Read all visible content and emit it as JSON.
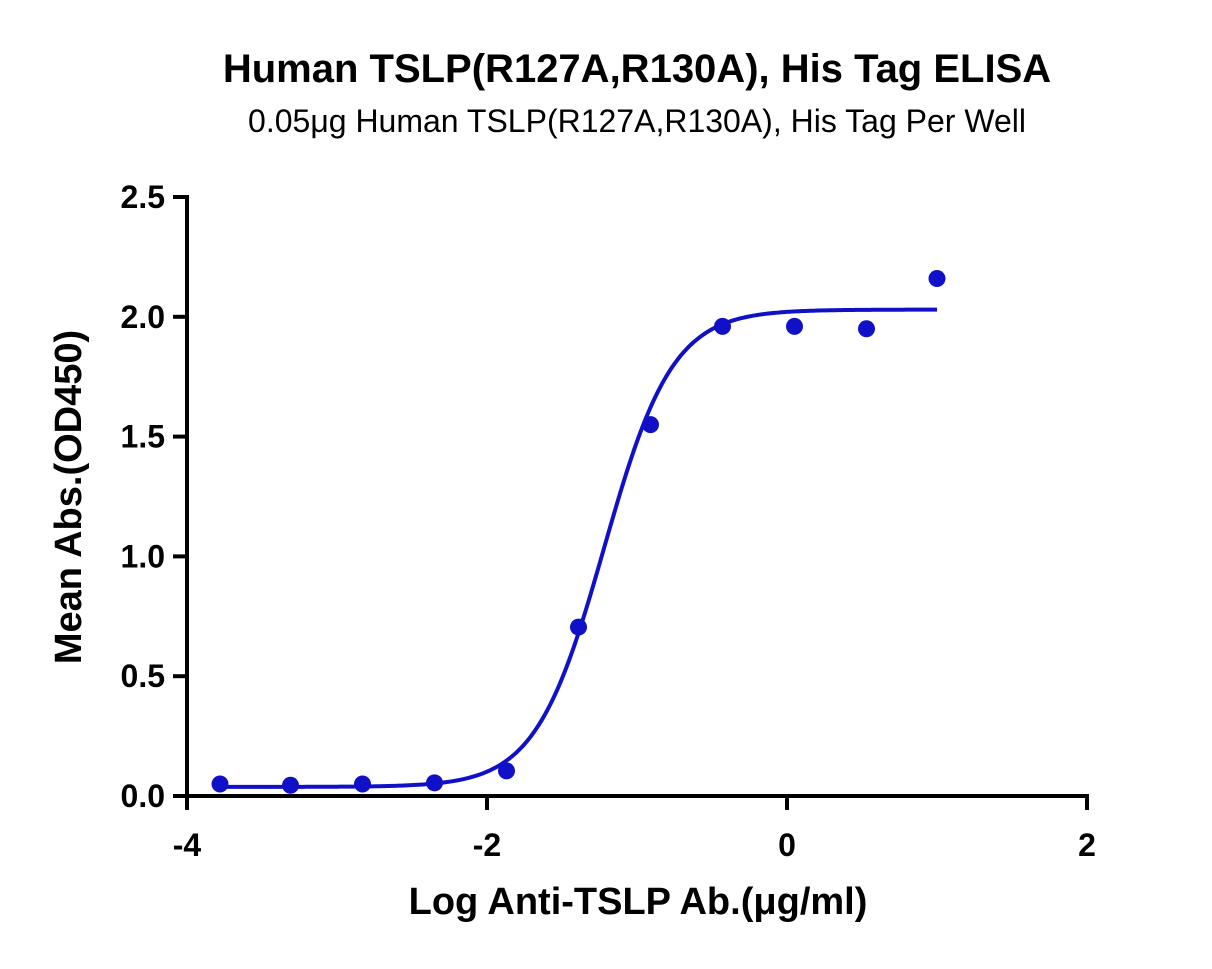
{
  "chart_data": {
    "type": "scatter",
    "title": "Human TSLP(R127A,R130A), His Tag ELISA",
    "subtitle": "0.05μg Human TSLP(R127A,R130A), His Tag Per Well",
    "xlabel": "Log Anti-TSLP Ab.(μg/ml)",
    "ylabel": "Mean Abs.(OD450)",
    "xlim": [
      -4,
      2
    ],
    "ylim": [
      0,
      2.5
    ],
    "xticks": [
      -4,
      -2,
      0,
      2
    ],
    "xtick_labels": [
      "-4",
      "-2",
      "0",
      "2"
    ],
    "yticks": [
      0,
      0.5,
      1,
      1.5,
      2,
      2.5
    ],
    "ytick_labels": [
      "0.0",
      "0.5",
      "1.0",
      "1.5",
      "2.0",
      "2.5"
    ],
    "grid": false,
    "color": "#1010c8",
    "points": {
      "x": [
        -3.78,
        -3.31,
        -2.83,
        -2.35,
        -1.87,
        -1.39,
        -0.91,
        -0.43,
        0.05,
        0.53,
        1.0
      ],
      "y": [
        0.05,
        0.045,
        0.05,
        0.055,
        0.105,
        0.705,
        1.55,
        1.96,
        1.96,
        1.95,
        2.16
      ]
    },
    "fit": {
      "model": "4PL",
      "bottom": 0.038,
      "top": 2.03,
      "log_ec50": -1.22,
      "hill_slope": 1.9,
      "x_range": [
        -3.78,
        1.0
      ]
    }
  }
}
